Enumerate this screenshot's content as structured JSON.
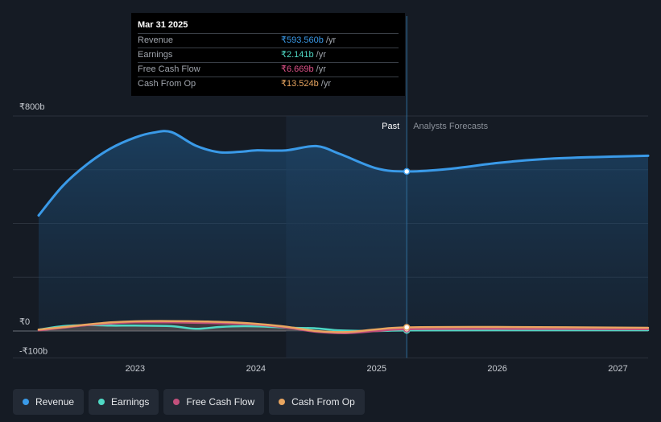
{
  "chart_data": {
    "type": "line",
    "currency": "₹",
    "y_axis": {
      "min": -100,
      "max": 800,
      "tick_labels": [
        "₹800b",
        "₹0",
        "-₹100b"
      ],
      "grid": true
    },
    "x_axis": {
      "tick_labels": [
        "2023",
        "2024",
        "2025",
        "2026",
        "2027"
      ],
      "tick_values": [
        2023,
        2024,
        2025,
        2026,
        2027
      ]
    },
    "past_label": "Past",
    "forecast_label": "Analysts Forecasts",
    "divider_x": 2025.25,
    "past_shade_start_x": 2024.25,
    "series": [
      {
        "name": "Revenue",
        "color": "#3a9ae8",
        "points": [
          [
            2022.2,
            430
          ],
          [
            2022.4,
            540
          ],
          [
            2022.6,
            620
          ],
          [
            2022.8,
            680
          ],
          [
            2023.0,
            720
          ],
          [
            2023.15,
            738
          ],
          [
            2023.3,
            740
          ],
          [
            2023.5,
            690
          ],
          [
            2023.7,
            665
          ],
          [
            2023.9,
            668
          ],
          [
            2024.0,
            672
          ],
          [
            2024.25,
            672
          ],
          [
            2024.5,
            688
          ],
          [
            2024.7,
            658
          ],
          [
            2025.0,
            605
          ],
          [
            2025.25,
            593.56
          ],
          [
            2025.6,
            603
          ],
          [
            2026.0,
            625
          ],
          [
            2026.4,
            640
          ],
          [
            2026.8,
            647
          ],
          [
            2027.25,
            652
          ]
        ]
      },
      {
        "name": "Earnings",
        "color": "#4fd8c4",
        "points": [
          [
            2022.2,
            5
          ],
          [
            2022.4,
            18
          ],
          [
            2022.6,
            22
          ],
          [
            2022.8,
            20
          ],
          [
            2023.0,
            20
          ],
          [
            2023.3,
            18
          ],
          [
            2023.5,
            8
          ],
          [
            2023.7,
            15
          ],
          [
            2023.9,
            18
          ],
          [
            2024.1,
            16
          ],
          [
            2024.3,
            12
          ],
          [
            2024.5,
            10
          ],
          [
            2024.7,
            2
          ],
          [
            2025.0,
            0
          ],
          [
            2025.25,
            2.141
          ],
          [
            2026.0,
            3
          ],
          [
            2027.25,
            3
          ]
        ]
      },
      {
        "name": "Free Cash Flow",
        "color": "#c2507c",
        "points": [
          [
            2022.2,
            2
          ],
          [
            2022.4,
            12
          ],
          [
            2022.6,
            22
          ],
          [
            2022.8,
            28
          ],
          [
            2023.0,
            32
          ],
          [
            2023.3,
            32
          ],
          [
            2023.6,
            30
          ],
          [
            2023.9,
            26
          ],
          [
            2024.1,
            20
          ],
          [
            2024.3,
            10
          ],
          [
            2024.5,
            -3
          ],
          [
            2024.75,
            -8
          ],
          [
            2025.0,
            0
          ],
          [
            2025.25,
            6.669
          ],
          [
            2026.0,
            8
          ],
          [
            2027.25,
            7
          ]
        ]
      },
      {
        "name": "Cash From Op",
        "color": "#e8a560",
        "points": [
          [
            2022.2,
            5
          ],
          [
            2022.4,
            14
          ],
          [
            2022.6,
            24
          ],
          [
            2022.8,
            32
          ],
          [
            2023.0,
            36
          ],
          [
            2023.3,
            37
          ],
          [
            2023.6,
            35
          ],
          [
            2023.9,
            30
          ],
          [
            2024.1,
            23
          ],
          [
            2024.3,
            13
          ],
          [
            2024.5,
            0
          ],
          [
            2024.75,
            -4
          ],
          [
            2025.0,
            6
          ],
          [
            2025.25,
            13.524
          ],
          [
            2026.0,
            15
          ],
          [
            2027.25,
            12
          ]
        ]
      }
    ]
  },
  "tooltip": {
    "date": "Mar 31 2025",
    "rows": [
      {
        "label": "Revenue",
        "value": "₹593.560b",
        "unit": "/yr",
        "color": "#3a9ae8"
      },
      {
        "label": "Earnings",
        "value": "₹2.141b",
        "unit": "/yr",
        "color": "#4fd8c4"
      },
      {
        "label": "Free Cash Flow",
        "value": "₹6.669b",
        "unit": "/yr",
        "color": "#e0528a"
      },
      {
        "label": "Cash From Op",
        "value": "₹13.524b",
        "unit": "/yr",
        "color": "#e8a560"
      }
    ]
  },
  "legend": [
    {
      "label": "Revenue",
      "color": "#3a9ae8"
    },
    {
      "label": "Earnings",
      "color": "#4fd8c4"
    },
    {
      "label": "Free Cash Flow",
      "color": "#c2507c"
    },
    {
      "label": "Cash From Op",
      "color": "#e8a560"
    }
  ]
}
